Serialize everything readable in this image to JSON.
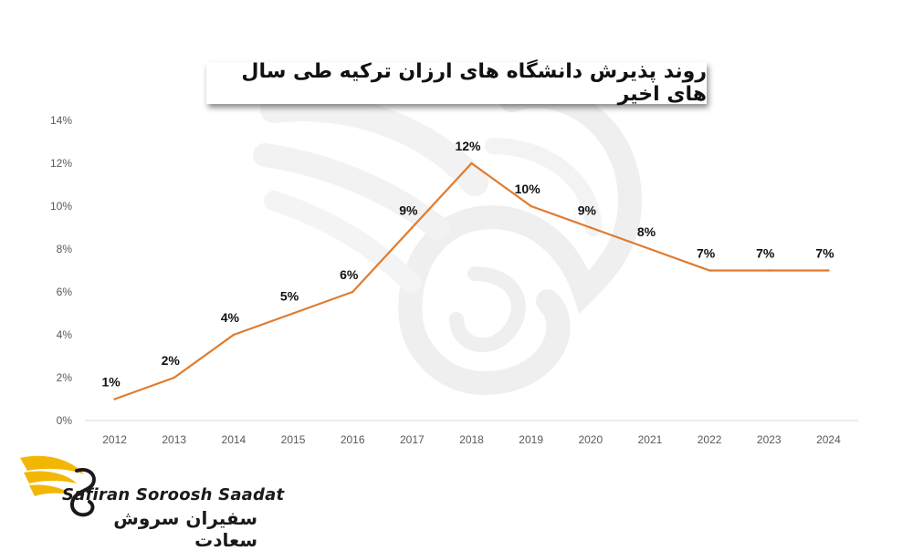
{
  "chart_data": {
    "type": "line",
    "title": "روند پذیرش دانشگاه های ارزان ترکیه طی سال های اخیر",
    "categories": [
      "2012",
      "2013",
      "2014",
      "2015",
      "2016",
      "2017",
      "2018",
      "2019",
      "2020",
      "2021",
      "2022",
      "2023",
      "2024"
    ],
    "values": [
      1,
      2,
      4,
      5,
      6,
      9,
      12,
      10,
      9,
      8,
      7,
      7,
      7
    ],
    "data_labels": [
      "1%",
      "2%",
      "4%",
      "5%",
      "6%",
      "9%",
      "12%",
      "10%",
      "9%",
      "8%",
      "7%",
      "7%",
      "7%"
    ],
    "ylim": [
      0,
      14
    ],
    "yticks": [
      0,
      2,
      4,
      6,
      8,
      10,
      12,
      14
    ],
    "ytick_labels": [
      "0%",
      "2%",
      "4%",
      "6%",
      "8%",
      "10%",
      "12%",
      "14%"
    ],
    "grid": false,
    "line_color": "#E07B2E",
    "xlabel": "",
    "ylabel": ""
  },
  "watermark": {
    "icon": "swan-logo-icon",
    "color": "#EDEDED"
  },
  "branding": {
    "name_en": "Safiran Soroosh Saadat",
    "name_fa": "سفیران سروش سعادت",
    "accent_color": "#F2B705"
  }
}
